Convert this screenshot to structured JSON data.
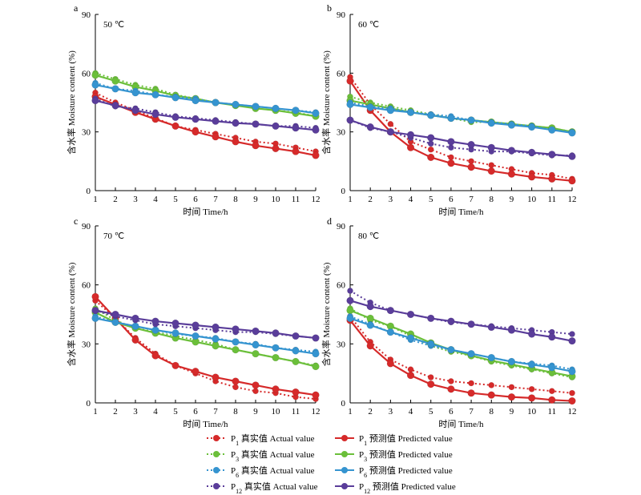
{
  "colors": {
    "P1": "#d62a2a",
    "P3": "#6bbf3a",
    "P6": "#3594d0",
    "P12": "#5a3d9a"
  },
  "chart_data": [
    {
      "type": "line",
      "panel": "a",
      "annotation": "50 ℃",
      "xlabel": "时间 Time/h",
      "ylabel": "含水率 Moisture content (%)",
      "x": [
        1,
        2,
        3,
        4,
        5,
        6,
        7,
        8,
        9,
        10,
        11,
        12
      ],
      "xlim": [
        1,
        12
      ],
      "ylim": [
        0,
        90
      ],
      "yticks": [
        0,
        30,
        60,
        90
      ],
      "series": [
        {
          "name": "P1 真实值 Actual value",
          "key": "P1",
          "kind": "actual",
          "values": [
            50,
            45,
            41,
            37,
            33,
            31,
            29,
            27,
            25,
            24,
            22,
            20
          ]
        },
        {
          "name": "P1 预测值 Predicted value",
          "key": "P1",
          "kind": "predicted",
          "values": [
            48,
            44,
            40,
            36.5,
            33,
            30,
            27.5,
            25,
            23,
            21.5,
            20,
            18
          ]
        },
        {
          "name": "P3 真实值 Actual value",
          "key": "P3",
          "kind": "actual",
          "values": [
            60,
            57,
            54,
            52,
            49,
            47,
            45,
            44,
            42,
            41,
            40,
            38
          ]
        },
        {
          "name": "P3 预测值 Predicted value",
          "key": "P3",
          "kind": "predicted",
          "values": [
            59,
            56,
            53,
            51,
            48.5,
            47,
            45,
            43.5,
            42,
            41,
            39.5,
            38
          ]
        },
        {
          "name": "P6 真实值 Actual value",
          "key": "P6",
          "kind": "actual",
          "values": [
            55,
            52,
            51,
            49,
            48,
            47,
            45,
            44,
            43,
            42,
            41,
            40
          ]
        },
        {
          "name": "P6 预测值 Predicted value",
          "key": "P6",
          "kind": "predicted",
          "values": [
            54,
            52,
            50,
            49,
            47.5,
            46,
            45,
            44,
            43,
            42,
            41,
            39.5
          ]
        },
        {
          "name": "P12 真实值 Actual value",
          "key": "P12",
          "kind": "actual",
          "values": [
            47,
            43,
            42,
            40,
            38,
            37,
            36,
            35,
            34,
            33,
            33,
            32
          ]
        },
        {
          "name": "P12 预测值 Predicted value",
          "key": "P12",
          "kind": "predicted",
          "values": [
            46,
            43.5,
            41,
            39,
            37.5,
            36.5,
            35.5,
            34.5,
            34,
            33,
            32,
            31
          ]
        }
      ]
    },
    {
      "type": "line",
      "panel": "b",
      "annotation": "60 ℃",
      "xlabel": "时间 Time/h",
      "ylabel": "含水率 Moisture content (%)",
      "x": [
        1,
        2,
        3,
        4,
        5,
        6,
        7,
        8,
        9,
        10,
        11,
        12
      ],
      "xlim": [
        1,
        12
      ],
      "ylim": [
        0,
        90
      ],
      "yticks": [
        0,
        30,
        60,
        90
      ],
      "series": [
        {
          "name": "P1 真实值 Actual value",
          "key": "P1",
          "kind": "actual",
          "values": [
            58,
            44,
            34,
            25,
            21,
            17,
            15,
            13,
            11,
            9,
            8,
            6
          ]
        },
        {
          "name": "P1 预测值 Predicted value",
          "key": "P1",
          "kind": "predicted",
          "values": [
            56,
            41,
            30,
            22,
            17,
            14,
            12,
            10,
            8.5,
            7,
            6,
            5
          ]
        },
        {
          "name": "P3 真实值 Actual value",
          "key": "P3",
          "kind": "actual",
          "values": [
            48,
            45,
            43,
            41,
            39,
            37,
            35,
            35,
            34,
            33,
            32,
            30
          ]
        },
        {
          "name": "P3 预测值 Predicted value",
          "key": "P3",
          "kind": "predicted",
          "values": [
            46,
            44,
            42,
            40,
            38.5,
            37,
            36,
            35,
            34,
            33,
            32,
            30
          ]
        },
        {
          "name": "P6 真实值 Actual value",
          "key": "P6",
          "kind": "actual",
          "values": [
            45,
            43,
            42,
            40,
            39,
            38,
            36,
            35,
            34,
            33,
            31,
            30
          ]
        },
        {
          "name": "P6 预测值 Predicted value",
          "key": "P6",
          "kind": "predicted",
          "values": [
            44,
            42.5,
            41,
            40,
            38.5,
            37,
            36,
            34.5,
            33.5,
            32.5,
            31,
            29.5
          ]
        },
        {
          "name": "P12 真实值 Actual value",
          "key": "P12",
          "kind": "actual",
          "values": [
            36,
            32,
            30,
            27,
            24,
            22,
            21,
            20,
            20,
            19,
            18,
            18
          ]
        },
        {
          "name": "P12 预测值 Predicted value",
          "key": "P12",
          "kind": "predicted",
          "values": [
            36,
            32.5,
            30,
            28.5,
            27,
            25,
            23.5,
            22,
            20.5,
            19.5,
            18.5,
            17.5
          ]
        }
      ]
    },
    {
      "type": "line",
      "panel": "c",
      "annotation": "70 ℃",
      "xlabel": "时间 Time/h",
      "ylabel": "含水率 Moisture content (%)",
      "x": [
        1,
        2,
        3,
        4,
        5,
        6,
        7,
        8,
        9,
        10,
        11,
        12
      ],
      "xlim": [
        1,
        12
      ],
      "ylim": [
        0,
        90
      ],
      "yticks": [
        0,
        30,
        60,
        90
      ],
      "series": [
        {
          "name": "P1 真实值 Actual value",
          "key": "P1",
          "kind": "actual",
          "values": [
            52,
            43,
            33,
            25,
            19,
            15,
            11,
            8,
            6,
            5,
            3,
            2
          ]
        },
        {
          "name": "P1 预测值 Predicted value",
          "key": "P1",
          "kind": "predicted",
          "values": [
            54,
            43,
            32,
            24,
            19,
            16,
            13,
            11,
            9,
            7,
            5.5,
            4
          ]
        },
        {
          "name": "P3 真实值 Actual value",
          "key": "P3",
          "kind": "actual",
          "values": [
            48,
            42,
            38,
            36,
            34,
            32,
            30,
            27,
            25,
            23,
            21,
            19
          ]
        },
        {
          "name": "P3 预测值 Predicted value",
          "key": "P3",
          "kind": "predicted",
          "values": [
            46,
            41,
            38,
            35.5,
            33,
            31,
            29,
            27,
            25,
            23,
            21,
            18.5
          ]
        },
        {
          "name": "P6 真实值 Actual value",
          "key": "P6",
          "kind": "actual",
          "values": [
            44,
            41,
            39,
            37,
            35,
            34,
            33,
            31,
            30,
            28,
            27,
            26
          ]
        },
        {
          "name": "P6 预测值 Predicted value",
          "key": "P6",
          "kind": "predicted",
          "values": [
            43,
            41,
            39,
            37,
            35.5,
            34,
            32.5,
            31,
            29.5,
            28,
            26.5,
            25
          ]
        },
        {
          "name": "P12 真实值 Actual value",
          "key": "P12",
          "kind": "actual",
          "values": [
            47,
            44,
            42,
            40,
            39,
            38,
            37,
            36,
            36,
            35,
            34,
            33
          ]
        },
        {
          "name": "P12 预测值 Predicted value",
          "key": "P12",
          "kind": "predicted",
          "values": [
            47,
            45,
            43,
            41.5,
            40.5,
            39.5,
            38.5,
            37.5,
            36.5,
            35.5,
            34,
            33
          ]
        }
      ]
    },
    {
      "type": "line",
      "panel": "d",
      "annotation": "80 ℃",
      "xlabel": "时间 Time/h",
      "ylabel": "含水率 Moisture content (%)",
      "x": [
        1,
        2,
        3,
        4,
        5,
        6,
        7,
        8,
        9,
        10,
        11,
        12
      ],
      "xlim": [
        1,
        12
      ],
      "ylim": [
        0,
        90
      ],
      "yticks": [
        0,
        30,
        60,
        90
      ],
      "series": [
        {
          "name": "P1 真实值 Actual value",
          "key": "P1",
          "kind": "actual",
          "values": [
            44,
            31,
            22,
            17,
            13,
            11,
            10,
            9,
            8,
            7,
            6,
            5
          ]
        },
        {
          "name": "P1 预测值 Predicted value",
          "key": "P1",
          "kind": "predicted",
          "values": [
            42,
            29,
            20,
            14,
            9.5,
            7,
            5,
            4,
            3,
            2.5,
            1.5,
            1
          ]
        },
        {
          "name": "P3 真实值 Actual value",
          "key": "P3",
          "kind": "actual",
          "values": [
            48,
            42,
            39,
            34,
            29,
            26,
            24,
            21,
            19,
            17,
            15,
            13
          ]
        },
        {
          "name": "P3 预测值 Predicted value",
          "key": "P3",
          "kind": "predicted",
          "values": [
            47,
            43,
            39,
            35,
            30.5,
            27,
            24,
            21.5,
            19.5,
            17.5,
            15.5,
            13.5
          ]
        },
        {
          "name": "P6 真实值 Actual value",
          "key": "P6",
          "kind": "actual",
          "values": [
            44,
            40,
            36,
            32,
            29,
            27,
            25,
            23,
            21,
            20,
            19,
            17
          ]
        },
        {
          "name": "P6 预测值 Predicted value",
          "key": "P6",
          "kind": "predicted",
          "values": [
            43,
            39.5,
            36,
            33,
            30,
            27,
            25,
            23,
            21,
            19.5,
            18,
            16
          ]
        },
        {
          "name": "P12 真实值 Actual value",
          "key": "P12",
          "kind": "actual",
          "values": [
            57,
            51,
            47,
            45,
            43,
            41,
            40,
            39,
            38,
            37,
            36,
            35
          ]
        },
        {
          "name": "P12 预测值 Predicted value",
          "key": "P12",
          "kind": "predicted",
          "values": [
            52,
            49,
            47,
            45,
            43,
            41.5,
            40,
            38.5,
            37,
            35,
            33.5,
            31.5
          ]
        }
      ]
    }
  ],
  "legend": [
    {
      "key": "P1",
      "kind": "actual",
      "sub": "1",
      "label": "真实值 Actual value"
    },
    {
      "key": "P1",
      "kind": "predicted",
      "sub": "1",
      "label": "预测值 Predicted value"
    },
    {
      "key": "P3",
      "kind": "actual",
      "sub": "3",
      "label": "真实值 Actual value"
    },
    {
      "key": "P3",
      "kind": "predicted",
      "sub": "3",
      "label": "预测值 Predicted value"
    },
    {
      "key": "P6",
      "kind": "actual",
      "sub": "6",
      "label": "真实值 Actual value"
    },
    {
      "key": "P6",
      "kind": "predicted",
      "sub": "6",
      "label": "预测值 Predicted value"
    },
    {
      "key": "P12",
      "kind": "actual",
      "sub": "12",
      "label": "真实值 Actual value"
    },
    {
      "key": "P12",
      "kind": "predicted",
      "sub": "12",
      "label": "预测值 Predicted value"
    }
  ]
}
